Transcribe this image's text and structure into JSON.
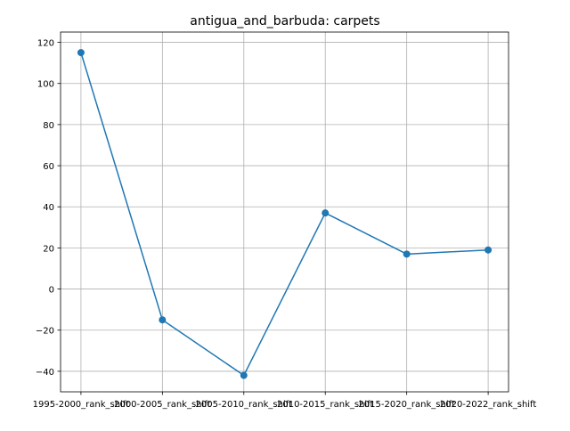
{
  "chart_data": {
    "type": "line",
    "title": "antigua_and_barbuda: carpets",
    "xlabel": "",
    "ylabel": "",
    "categories": [
      "1995-2000_rank_shift",
      "2000-2005_rank_shift",
      "2005-2010_rank_shift",
      "2010-2015_rank_shift",
      "2015-2020_rank_shift",
      "2020-2022_rank_shift"
    ],
    "series": [
      {
        "values": [
          115,
          -15,
          -42,
          37,
          17,
          19
        ]
      }
    ],
    "ylim": [
      -50,
      125
    ],
    "yticks": [
      -40,
      -20,
      0,
      20,
      40,
      60,
      80,
      100,
      120
    ],
    "grid": true,
    "markers": true,
    "color": "#1f77b4"
  }
}
